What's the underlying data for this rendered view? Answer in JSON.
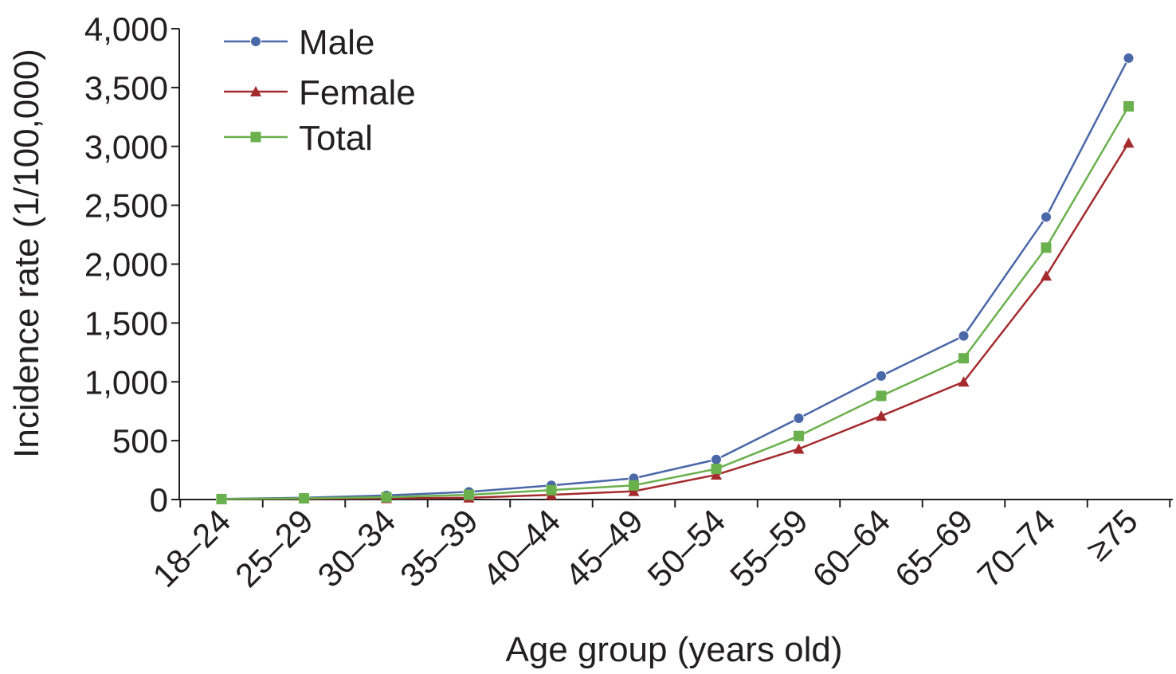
{
  "chart_data": {
    "type": "line",
    "title": "",
    "xlabel": "Age group (years old)",
    "ylabel": "Incidence rate (1/100,000)",
    "categories": [
      "18–24",
      "25–29",
      "30–34",
      "35–39",
      "40–44",
      "45–49",
      "50–54",
      "55–59",
      "60–64",
      "65–69",
      "70–74",
      "≥75"
    ],
    "ylim": [
      0,
      4000
    ],
    "yticks": [
      0,
      500,
      1000,
      1500,
      2000,
      2500,
      3000,
      3500,
      4000
    ],
    "ytick_labels": [
      "0",
      "500",
      "1,000",
      "1,500",
      "2,000",
      "2,500",
      "3,000",
      "3,500",
      "4,000"
    ],
    "grid": false,
    "legend_position": "top-left",
    "series": [
      {
        "name": "Male",
        "color": "#4a67a8",
        "marker": "circle",
        "values": [
          5,
          15,
          35,
          65,
          120,
          180,
          340,
          690,
          1050,
          1390,
          2400,
          3750
        ]
      },
      {
        "name": "Female",
        "color": "#a42a2d",
        "marker": "triangle",
        "values": [
          3,
          8,
          10,
          15,
          40,
          70,
          210,
          430,
          710,
          1000,
          1900,
          3030
        ]
      },
      {
        "name": "Total",
        "color": "#6ab04c",
        "marker": "square",
        "values": [
          4,
          10,
          20,
          40,
          80,
          120,
          260,
          540,
          880,
          1200,
          2140,
          3340
        ]
      }
    ]
  }
}
